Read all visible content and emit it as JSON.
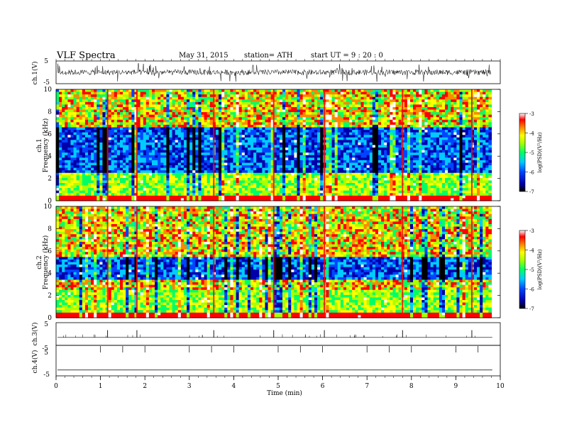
{
  "header": {
    "title": "VLF  Spectra",
    "date": "May 31, 2015",
    "station": "station= ATH",
    "start": "start  UT =   9 : 20 : 0"
  },
  "chart_data": [
    {
      "type": "line",
      "panel": "ch1-waveform",
      "ylabel": "ch.1(V)",
      "ylim": [
        -5,
        5
      ],
      "yticks": [
        "5",
        "-5"
      ],
      "xlim": [
        0,
        10
      ],
      "baseline": 0,
      "envelope": [
        -1.2,
        1.2
      ]
    },
    {
      "type": "heatmap",
      "panel": "ch1-spectrogram",
      "ylabel": "Frequency  (kHz)",
      "channel_label": "ch.1",
      "ylim": [
        0,
        10
      ],
      "yticks": [
        "0",
        "2",
        "4",
        "6",
        "8",
        "10"
      ],
      "xlim": [
        0,
        9.8
      ],
      "colorbar": {
        "label": "log(PSD)(V²/Hz)",
        "range": [
          -7,
          -3
        ],
        "ticks": [
          "-3",
          "-4",
          "-5",
          "-6",
          "-7"
        ]
      },
      "noise_band_khz": [
        2.5,
        6.5
      ]
    },
    {
      "type": "heatmap",
      "panel": "ch2-spectrogram",
      "ylabel": "Frequency  (kHz)",
      "channel_label": "ch.2",
      "ylim": [
        0,
        10
      ],
      "yticks": [
        "0",
        "2",
        "4",
        "6",
        "8",
        "10"
      ],
      "xlim": [
        0,
        9.8
      ],
      "colorbar": {
        "label": "log(PSD)(V²/Hz)",
        "range": [
          -7,
          -3
        ],
        "ticks": [
          "-3",
          "-4",
          "-5",
          "-6",
          "-7"
        ]
      },
      "noise_band_khz": [
        3.5,
        5.5
      ]
    },
    {
      "type": "line",
      "panel": "ch3-waveform",
      "ylabel": "ch.3(V)",
      "ylim": [
        -5,
        5
      ],
      "yticks": [
        "5",
        "-5"
      ],
      "xlim": [
        0,
        10
      ],
      "baseline": -1.5,
      "spikes_min": [
        1.16,
        1.82,
        3.55,
        4.9,
        6.04,
        7.8,
        9.36
      ]
    },
    {
      "type": "line",
      "panel": "ch4-waveform",
      "ylabel": "ch.4(V)",
      "ylim": [
        -5,
        5
      ],
      "yticks": [
        "5",
        "-5"
      ],
      "xlim": [
        0,
        10
      ],
      "baseline": -2.5,
      "spikes_min": [
        1.0,
        2.0,
        3.0,
        4.0,
        5.0,
        6.0,
        7.0,
        8.0,
        9.0,
        1.5,
        3.5,
        5.5,
        7.5,
        9.5
      ]
    }
  ],
  "xaxis": {
    "label": "Time  (min)",
    "ticks": [
      "0",
      "1",
      "2",
      "3",
      "4",
      "5",
      "6",
      "7",
      "8",
      "9",
      "10"
    ],
    "range": [
      0,
      10
    ]
  },
  "colors": {
    "colormap": [
      "#000000",
      "#0000aa",
      "#0044ff",
      "#00ccff",
      "#00ff66",
      "#aaff00",
      "#ffff00",
      "#ff8800",
      "#ff0000",
      "#ffffff"
    ]
  }
}
